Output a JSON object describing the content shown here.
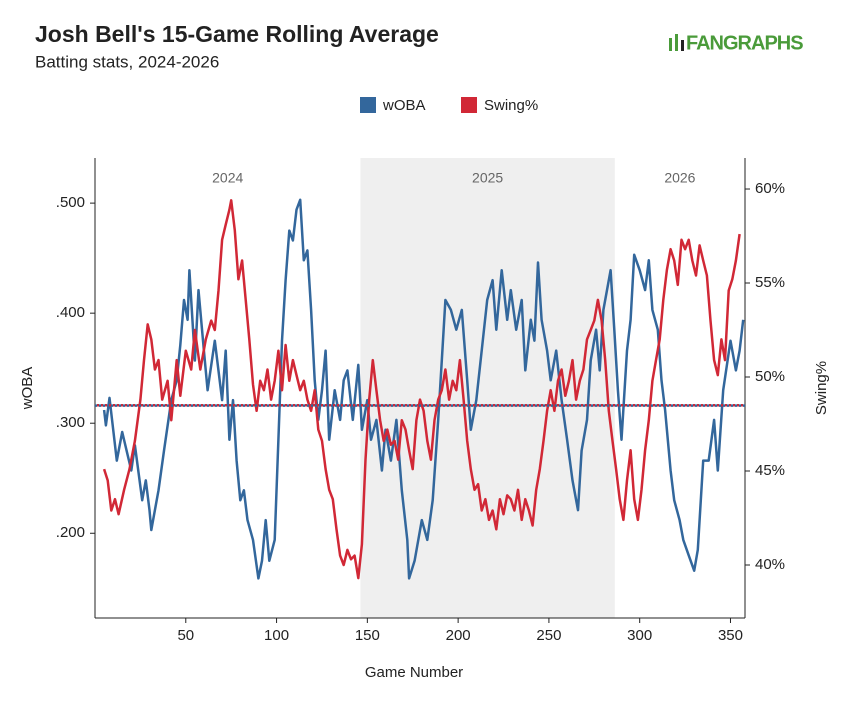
{
  "chart_data": {
    "type": "line",
    "title": "Josh Bell's 15-Game Rolling Average",
    "subtitle": "Batting stats, 2024-2026",
    "logo": "FANGRAPHS",
    "x_label": "Game Number",
    "y_label": "wOBA",
    "y2_label": "Swing%",
    "xlim": [
      0,
      358
    ],
    "xticks": [
      50,
      100,
      150,
      200,
      250,
      300,
      350
    ],
    "ylim": [
      0.123,
      0.541
    ],
    "yticks": [
      {
        "value": 0.2,
        "label": ".200"
      },
      {
        "value": 0.3,
        "label": ".300"
      },
      {
        "value": 0.4,
        "label": ".400"
      },
      {
        "value": 0.5,
        "label": ".500"
      }
    ],
    "y2lim": [
      37.18,
      61.65
    ],
    "y2ticks": [
      {
        "value": 40,
        "label": "40%"
      },
      {
        "value": 45,
        "label": "45%"
      },
      {
        "value": 50,
        "label": "50%"
      },
      {
        "value": 55,
        "label": "55%"
      },
      {
        "value": 60,
        "label": "60%"
      }
    ],
    "seasons": [
      {
        "label": "2024",
        "start": 0,
        "end": 146.2,
        "shaded": false
      },
      {
        "label": "2025",
        "start": 146.2,
        "end": 286.3,
        "shaded": true
      },
      {
        "label": "2026",
        "start": 286.3,
        "end": 358,
        "shaded": false
      }
    ],
    "reference_lines": [
      {
        "axis": "y",
        "value": 0.316,
        "color": "#33679c"
      },
      {
        "axis": "y2",
        "value": 48.5,
        "color": "#c62b3c"
      }
    ],
    "series": [
      {
        "name": "wOBA",
        "color": "#33679c",
        "axis": "y",
        "x": [
          5,
          6,
          8,
          12,
          15,
          20,
          22,
          26,
          28,
          30,
          31,
          35,
          38,
          42,
          45,
          47,
          49,
          51,
          52,
          55,
          57,
          60,
          62,
          66,
          70,
          72,
          74,
          76,
          78,
          80,
          82,
          84,
          87,
          90,
          92,
          94,
          96,
          99,
          101,
          103,
          105,
          107,
          109,
          111,
          113,
          115,
          117,
          119,
          121,
          123,
          125,
          127,
          129,
          132,
          135,
          137,
          139,
          142,
          145,
          147,
          150,
          152,
          155,
          158,
          160,
          163,
          166,
          169,
          172,
          173,
          176,
          180,
          183,
          186,
          189,
          191,
          193,
          196,
          199,
          202,
          205,
          207,
          210,
          213,
          216,
          219,
          221,
          224,
          227,
          229,
          232,
          235,
          237,
          240,
          242,
          244,
          246,
          249,
          251,
          254,
          257,
          260,
          263,
          266,
          268,
          271,
          273,
          276,
          278,
          280,
          282,
          284,
          286,
          288,
          290,
          293,
          295,
          297,
          300,
          303,
          305,
          307,
          310,
          312,
          314,
          317,
          319,
          322,
          324,
          327,
          330,
          332,
          335,
          338,
          341,
          343,
          346,
          350,
          353,
          355,
          357
        ],
        "values": [
          0.312,
          0.298,
          0.323,
          0.266,
          0.292,
          0.257,
          0.28,
          0.23,
          0.248,
          0.221,
          0.203,
          0.239,
          0.275,
          0.321,
          0.339,
          0.371,
          0.412,
          0.394,
          0.439,
          0.357,
          0.421,
          0.366,
          0.33,
          0.375,
          0.321,
          0.366,
          0.285,
          0.321,
          0.266,
          0.23,
          0.239,
          0.212,
          0.194,
          0.159,
          0.175,
          0.212,
          0.175,
          0.194,
          0.285,
          0.375,
          0.43,
          0.475,
          0.466,
          0.494,
          0.503,
          0.448,
          0.457,
          0.403,
          0.339,
          0.303,
          0.33,
          0.366,
          0.285,
          0.33,
          0.303,
          0.339,
          0.348,
          0.303,
          0.353,
          0.294,
          0.321,
          0.285,
          0.303,
          0.257,
          0.294,
          0.266,
          0.303,
          0.239,
          0.194,
          0.159,
          0.175,
          0.212,
          0.194,
          0.23,
          0.303,
          0.357,
          0.412,
          0.403,
          0.385,
          0.403,
          0.339,
          0.294,
          0.321,
          0.366,
          0.412,
          0.43,
          0.385,
          0.439,
          0.394,
          0.421,
          0.385,
          0.412,
          0.348,
          0.394,
          0.375,
          0.446,
          0.394,
          0.366,
          0.339,
          0.366,
          0.321,
          0.285,
          0.248,
          0.221,
          0.275,
          0.303,
          0.357,
          0.385,
          0.348,
          0.403,
          0.421,
          0.439,
          0.385,
          0.33,
          0.285,
          0.366,
          0.394,
          0.453,
          0.439,
          0.421,
          0.448,
          0.403,
          0.385,
          0.339,
          0.312,
          0.257,
          0.23,
          0.212,
          0.194,
          0.18,
          0.166,
          0.185,
          0.266,
          0.266,
          0.303,
          0.257,
          0.33,
          0.375,
          0.348,
          0.366,
          0.394
        ]
      },
      {
        "name": "Swing%",
        "color": "#d12836",
        "axis": "y2",
        "x": [
          5,
          7,
          9,
          11,
          13,
          16,
          19,
          22,
          25,
          27,
          29,
          31,
          33,
          35,
          37,
          40,
          42,
          45,
          47,
          50,
          53,
          55,
          58,
          61,
          64,
          66,
          68,
          70,
          72,
          74,
          75,
          77,
          79,
          81,
          83,
          85,
          87,
          89,
          91,
          93,
          95,
          97,
          99,
          101,
          103,
          105,
          107,
          109,
          111,
          113,
          115,
          117,
          119,
          121,
          123,
          125,
          127,
          129,
          131,
          133,
          135,
          137,
          139,
          141,
          143,
          145,
          147,
          149,
          151,
          153,
          155,
          157,
          159,
          161,
          163,
          165,
          167,
          169,
          171,
          173,
          175,
          177,
          179,
          181,
          183,
          185,
          187,
          189,
          191,
          193,
          195,
          197,
          199,
          201,
          203,
          205,
          207,
          209,
          211,
          213,
          215,
          217,
          219,
          221,
          223,
          225,
          227,
          229,
          231,
          233,
          235,
          237,
          239,
          241,
          243,
          245,
          247,
          249,
          251,
          253,
          255,
          257,
          259,
          261,
          263,
          265,
          267,
          269,
          271,
          273,
          275,
          277,
          279,
          281,
          283,
          285,
          287,
          289,
          291,
          293,
          295,
          297,
          299,
          301,
          303,
          305,
          307,
          309,
          311,
          313,
          315,
          317,
          319,
          321,
          323,
          325,
          327,
          329,
          331,
          333,
          335,
          337,
          339,
          341,
          343,
          345,
          347,
          349,
          351,
          353,
          355
        ],
        "values": [
          45.1,
          44.5,
          42.9,
          43.5,
          42.7,
          44.0,
          45.1,
          46.6,
          48.8,
          50.9,
          52.8,
          52.0,
          50.4,
          50.9,
          48.8,
          49.8,
          47.7,
          50.9,
          49.0,
          51.4,
          50.4,
          52.5,
          50.4,
          52.0,
          53.0,
          52.5,
          54.6,
          57.3,
          58.1,
          58.9,
          59.4,
          57.8,
          55.2,
          56.2,
          54.1,
          52.0,
          49.6,
          48.2,
          49.8,
          49.3,
          50.4,
          48.8,
          49.8,
          51.4,
          49.3,
          51.7,
          49.8,
          50.9,
          50.1,
          49.3,
          49.8,
          48.8,
          48.2,
          49.3,
          47.2,
          46.6,
          45.1,
          44.0,
          43.5,
          41.9,
          40.5,
          40.0,
          40.8,
          40.3,
          40.5,
          39.3,
          41.1,
          45.6,
          48.8,
          50.9,
          49.3,
          47.7,
          46.6,
          47.2,
          46.4,
          46.6,
          45.6,
          47.7,
          47.2,
          46.1,
          45.1,
          47.7,
          48.8,
          48.2,
          46.6,
          45.6,
          47.7,
          48.8,
          49.3,
          50.4,
          48.8,
          49.8,
          49.3,
          50.9,
          48.8,
          46.6,
          45.1,
          44.0,
          44.3,
          42.9,
          43.5,
          42.4,
          42.9,
          41.9,
          43.5,
          42.7,
          43.7,
          43.5,
          42.9,
          44.0,
          42.4,
          43.5,
          42.9,
          42.1,
          44.0,
          45.1,
          46.6,
          48.2,
          49.3,
          48.2,
          49.8,
          50.4,
          49.0,
          49.8,
          50.9,
          48.8,
          49.8,
          50.4,
          52.0,
          52.5,
          53.0,
          54.1,
          53.0,
          50.9,
          48.2,
          46.6,
          45.1,
          43.5,
          42.4,
          44.5,
          46.1,
          43.5,
          42.4,
          44.0,
          46.1,
          47.7,
          49.8,
          50.9,
          52.0,
          54.1,
          55.7,
          56.8,
          56.2,
          54.9,
          57.3,
          56.8,
          57.3,
          56.2,
          55.4,
          57.0,
          56.2,
          55.4,
          53.0,
          50.9,
          50.1,
          52.0,
          50.9,
          54.6,
          55.2,
          56.2,
          57.6
        ]
      }
    ]
  }
}
